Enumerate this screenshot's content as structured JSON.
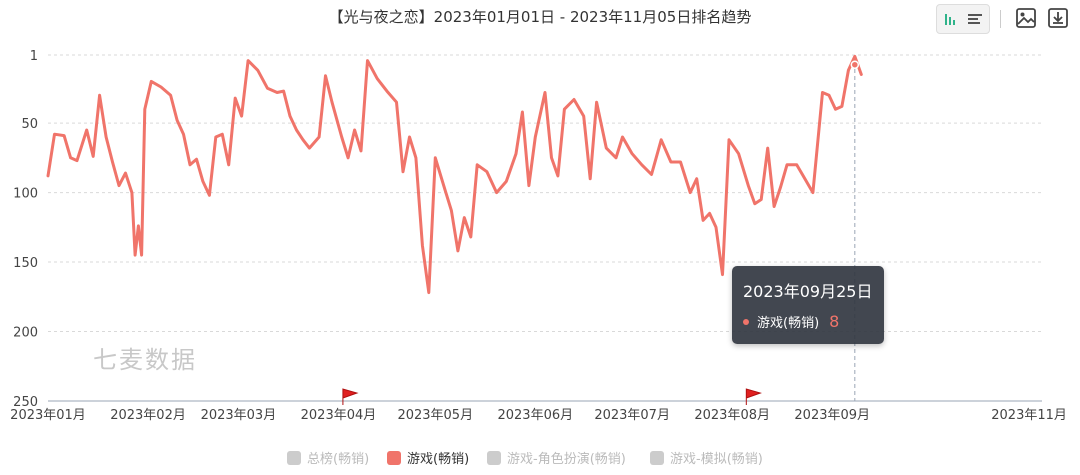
{
  "title": "【光与夜之恋】2023年01月01日 - 2023年11月05日排名趋势",
  "toolbar": {
    "sort_icon": "bar-sort-icon",
    "image_icon": "save-image-icon",
    "download_icon": "download-icon"
  },
  "watermark": "七麦数据",
  "tooltip": {
    "date": "2023年09月25日",
    "series": "游戏(畅销)",
    "value": "8",
    "color": "#f0746a"
  },
  "legend": [
    {
      "label": "总榜(畅销)",
      "active": false,
      "color": "#cccccc"
    },
    {
      "label": "游戏(畅销)",
      "active": true,
      "color": "#f0746a"
    },
    {
      "label": "游戏-角色扮演(畅销)",
      "active": false,
      "color": "#cccccc"
    },
    {
      "label": "游戏-模拟(畅销)",
      "active": false,
      "color": "#cccccc"
    }
  ],
  "chart_data": {
    "type": "line",
    "title": "【光与夜之恋】2023年01月01日 - 2023年11月05日排名趋势",
    "xlabel": "",
    "ylabel": "",
    "y_inverted": true,
    "ylim": [
      1,
      250
    ],
    "yticks": [
      "1",
      "50",
      "100",
      "150",
      "200",
      "250"
    ],
    "xticks": [
      "2023年01月",
      "2023年02月",
      "2023年03月",
      "2023年04月",
      "2023年05月",
      "2023年06月",
      "2023年07月",
      "2023年08月",
      "2023年09月",
      "2023年11月"
    ],
    "grid": true,
    "legend_position": "bottom",
    "series": [
      {
        "name": "游戏(畅销)",
        "color": "#f0746a",
        "points": [
          [
            "2023-01-01",
            88
          ],
          [
            "2023-01-03",
            58
          ],
          [
            "2023-01-06",
            59
          ],
          [
            "2023-01-08",
            75
          ],
          [
            "2023-01-10",
            77
          ],
          [
            "2023-01-13",
            55
          ],
          [
            "2023-01-15",
            74
          ],
          [
            "2023-01-17",
            30
          ],
          [
            "2023-01-19",
            60
          ],
          [
            "2023-01-21",
            78
          ],
          [
            "2023-01-23",
            95
          ],
          [
            "2023-01-25",
            86
          ],
          [
            "2023-01-27",
            100
          ],
          [
            "2023-01-28",
            145
          ],
          [
            "2023-01-29",
            124
          ],
          [
            "2023-01-30",
            145
          ],
          [
            "2023-01-31",
            40
          ],
          [
            "2023-02-02",
            20
          ],
          [
            "2023-02-05",
            24
          ],
          [
            "2023-02-08",
            30
          ],
          [
            "2023-02-10",
            48
          ],
          [
            "2023-02-12",
            58
          ],
          [
            "2023-02-14",
            80
          ],
          [
            "2023-02-16",
            76
          ],
          [
            "2023-02-18",
            92
          ],
          [
            "2023-02-20",
            102
          ],
          [
            "2023-02-22",
            60
          ],
          [
            "2023-02-24",
            58
          ],
          [
            "2023-02-26",
            80
          ],
          [
            "2023-02-28",
            32
          ],
          [
            "2023-03-02",
            45
          ],
          [
            "2023-03-04",
            5
          ],
          [
            "2023-03-07",
            12
          ],
          [
            "2023-03-10",
            25
          ],
          [
            "2023-03-13",
            28
          ],
          [
            "2023-03-15",
            27
          ],
          [
            "2023-03-17",
            45
          ],
          [
            "2023-03-19",
            55
          ],
          [
            "2023-03-21",
            62
          ],
          [
            "2023-03-23",
            68
          ],
          [
            "2023-03-26",
            60
          ],
          [
            "2023-03-28",
            16
          ],
          [
            "2023-03-30",
            35
          ],
          [
            "2023-04-02",
            60
          ],
          [
            "2023-04-04",
            75
          ],
          [
            "2023-04-06",
            55
          ],
          [
            "2023-04-08",
            70
          ],
          [
            "2023-04-10",
            5
          ],
          [
            "2023-04-13",
            18
          ],
          [
            "2023-04-16",
            27
          ],
          [
            "2023-04-19",
            35
          ],
          [
            "2023-04-21",
            85
          ],
          [
            "2023-04-23",
            60
          ],
          [
            "2023-04-25",
            75
          ],
          [
            "2023-04-27",
            138
          ],
          [
            "2023-04-29",
            172
          ],
          [
            "2023-05-01",
            75
          ],
          [
            "2023-05-04",
            98
          ],
          [
            "2023-05-06",
            113
          ],
          [
            "2023-05-08",
            142
          ],
          [
            "2023-05-10",
            118
          ],
          [
            "2023-05-12",
            132
          ],
          [
            "2023-05-14",
            80
          ],
          [
            "2023-05-17",
            85
          ],
          [
            "2023-05-20",
            100
          ],
          [
            "2023-05-23",
            92
          ],
          [
            "2023-05-26",
            72
          ],
          [
            "2023-05-28",
            42
          ],
          [
            "2023-05-30",
            95
          ],
          [
            "2023-06-01",
            60
          ],
          [
            "2023-06-04",
            28
          ],
          [
            "2023-06-06",
            75
          ],
          [
            "2023-06-08",
            88
          ],
          [
            "2023-06-10",
            40
          ],
          [
            "2023-06-13",
            33
          ],
          [
            "2023-06-16",
            45
          ],
          [
            "2023-06-18",
            90
          ],
          [
            "2023-06-20",
            35
          ],
          [
            "2023-06-23",
            68
          ],
          [
            "2023-06-26",
            75
          ],
          [
            "2023-06-28",
            60
          ],
          [
            "2023-07-01",
            72
          ],
          [
            "2023-07-04",
            80
          ],
          [
            "2023-07-07",
            87
          ],
          [
            "2023-07-10",
            62
          ],
          [
            "2023-07-13",
            78
          ],
          [
            "2023-07-16",
            78
          ],
          [
            "2023-07-19",
            100
          ],
          [
            "2023-07-21",
            90
          ],
          [
            "2023-07-23",
            120
          ],
          [
            "2023-07-25",
            115
          ],
          [
            "2023-07-27",
            125
          ],
          [
            "2023-07-29",
            159
          ],
          [
            "2023-07-31",
            62
          ],
          [
            "2023-08-03",
            72
          ],
          [
            "2023-08-06",
            95
          ],
          [
            "2023-08-08",
            108
          ],
          [
            "2023-08-10",
            105
          ],
          [
            "2023-08-12",
            68
          ],
          [
            "2023-08-14",
            110
          ],
          [
            "2023-08-16",
            96
          ],
          [
            "2023-08-18",
            80
          ],
          [
            "2023-08-21",
            80
          ],
          [
            "2023-08-23",
            88
          ],
          [
            "2023-08-26",
            100
          ],
          [
            "2023-08-29",
            28
          ],
          [
            "2023-08-31",
            30
          ],
          [
            "2023-09-02",
            40
          ],
          [
            "2023-09-04",
            38
          ],
          [
            "2023-09-06",
            12
          ],
          [
            "2023-09-08",
            2
          ],
          [
            "2023-09-10",
            15
          ]
        ]
      }
    ]
  }
}
